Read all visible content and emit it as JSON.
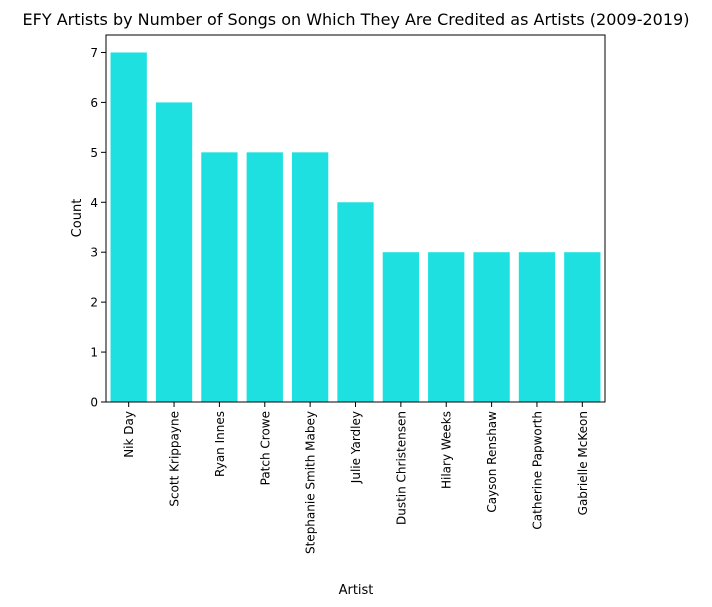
{
  "chart_data": {
    "type": "bar",
    "title": "EFY Artists by Number of Songs on Which They Are Credited as Artists (2009-2019)",
    "xlabel": "Artist",
    "ylabel": "Count",
    "categories": [
      "Nik Day",
      "Scott Krippayne",
      "Ryan Innes",
      "Patch Crowe",
      "Stephanie Smith Mabey",
      "Julie Yardley",
      "Dustin Christensen",
      "Hilary Weeks",
      "Cayson Renshaw",
      "Catherine Papworth",
      "Gabrielle McKeon"
    ],
    "values": [
      7,
      6,
      5,
      5,
      5,
      4,
      3,
      3,
      3,
      3,
      3
    ],
    "ylim": [
      0,
      7.35
    ],
    "yticks": [
      0,
      1,
      2,
      3,
      4,
      5,
      6,
      7
    ],
    "bar_color": "#1fe0e0",
    "grid": false,
    "legend": "none"
  }
}
